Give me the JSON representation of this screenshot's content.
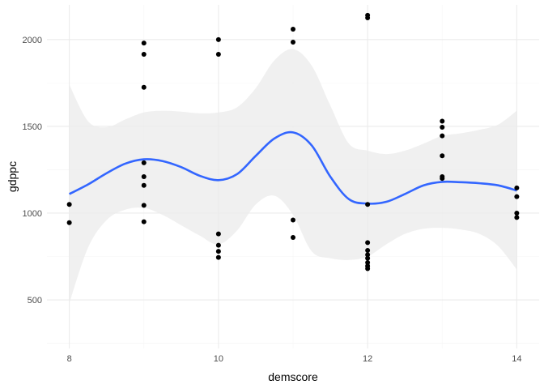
{
  "chart_data": {
    "type": "scatter",
    "xlabel": "demscore",
    "ylabel": "gdppc",
    "xlim": [
      7.7,
      14.3
    ],
    "ylim": [
      220,
      2200
    ],
    "x_ticks": [
      8,
      10,
      12,
      14
    ],
    "x_tick_labels": [
      "8",
      "10",
      "12",
      "14"
    ],
    "y_ticks": [
      500,
      1000,
      1500,
      2000
    ],
    "y_tick_labels": [
      "500",
      "1000",
      "1500",
      "2000"
    ],
    "grid": true,
    "legend": "none",
    "colors": {
      "points": "#000000",
      "smooth": "#3366ff",
      "ribbon": "#ebebeb",
      "grid_major": "#ebebeb",
      "grid_minor": "#f5f5f5"
    },
    "points": [
      {
        "x": 8,
        "y": 1050
      },
      {
        "x": 8,
        "y": 945
      },
      {
        "x": 9,
        "y": 1980
      },
      {
        "x": 9,
        "y": 1915
      },
      {
        "x": 9,
        "y": 1725
      },
      {
        "x": 9,
        "y": 1290
      },
      {
        "x": 9,
        "y": 1210
      },
      {
        "x": 9,
        "y": 1160
      },
      {
        "x": 9,
        "y": 1045
      },
      {
        "x": 9,
        "y": 950
      },
      {
        "x": 10,
        "y": 2000
      },
      {
        "x": 10,
        "y": 1915
      },
      {
        "x": 10,
        "y": 880
      },
      {
        "x": 10,
        "y": 815
      },
      {
        "x": 10,
        "y": 780
      },
      {
        "x": 10,
        "y": 745
      },
      {
        "x": 11,
        "y": 2060
      },
      {
        "x": 11,
        "y": 1985
      },
      {
        "x": 11,
        "y": 960
      },
      {
        "x": 11,
        "y": 860
      },
      {
        "x": 12,
        "y": 2140
      },
      {
        "x": 12,
        "y": 2125
      },
      {
        "x": 12,
        "y": 1050
      },
      {
        "x": 12,
        "y": 830
      },
      {
        "x": 12,
        "y": 785
      },
      {
        "x": 12,
        "y": 760
      },
      {
        "x": 12,
        "y": 740
      },
      {
        "x": 12,
        "y": 715
      },
      {
        "x": 12,
        "y": 695
      },
      {
        "x": 12,
        "y": 680
      },
      {
        "x": 13,
        "y": 1530
      },
      {
        "x": 13,
        "y": 1495
      },
      {
        "x": 13,
        "y": 1445
      },
      {
        "x": 13,
        "y": 1330
      },
      {
        "x": 13,
        "y": 1210
      },
      {
        "x": 13,
        "y": 1200
      },
      {
        "x": 14,
        "y": 1145
      },
      {
        "x": 14,
        "y": 1095
      },
      {
        "x": 14,
        "y": 1000
      },
      {
        "x": 14,
        "y": 975
      }
    ],
    "smooth": {
      "x": [
        8,
        8.25,
        8.5,
        8.75,
        9,
        9.25,
        9.5,
        9.75,
        10,
        10.25,
        10.5,
        10.75,
        11,
        11.25,
        11.5,
        11.75,
        12,
        12.25,
        12.5,
        12.75,
        13,
        13.25,
        13.5,
        13.75,
        14
      ],
      "y": [
        1110,
        1165,
        1230,
        1285,
        1310,
        1300,
        1265,
        1215,
        1190,
        1225,
        1330,
        1430,
        1465,
        1390,
        1210,
        1080,
        1055,
        1065,
        1110,
        1160,
        1180,
        1178,
        1172,
        1160,
        1130
      ],
      "lower": [
        480,
        800,
        960,
        1020,
        1030,
        990,
        930,
        870,
        820,
        900,
        1050,
        1100,
        990,
        780,
        740,
        730,
        750,
        820,
        880,
        910,
        915,
        905,
        880,
        810,
        675
      ],
      "upper": [
        1740,
        1530,
        1495,
        1540,
        1580,
        1590,
        1585,
        1575,
        1580,
        1610,
        1720,
        1880,
        1945,
        1850,
        1620,
        1400,
        1360,
        1340,
        1360,
        1400,
        1445,
        1460,
        1480,
        1510,
        1590
      ]
    }
  }
}
